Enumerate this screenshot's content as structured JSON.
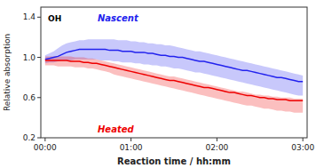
{
  "chart_data": {
    "type": "line",
    "xlabel": "Reaction time / hh:mm",
    "ylabel": "Relative absorption",
    "xlim": [
      -0.05,
      3.05
    ],
    "ylim": [
      0.2,
      1.5
    ],
    "xticks": [
      {
        "value": 0,
        "label": "00:00"
      },
      {
        "value": 1,
        "label": "01:00"
      },
      {
        "value": 2,
        "label": "02:00"
      },
      {
        "value": 3,
        "label": "03:00"
      }
    ],
    "yticks": [
      0.2,
      0.6,
      {
        "value": 1,
        "label": "1.0"
      },
      1.4
    ],
    "annotations": [
      {
        "text": "OH"
      }
    ],
    "x": [
      0.0,
      0.05,
      0.1,
      0.15,
      0.2,
      0.25,
      0.3,
      0.35,
      0.4,
      0.45,
      0.5,
      0.55,
      0.6,
      0.65,
      0.7,
      0.75,
      0.8,
      0.85,
      0.9,
      0.95,
      1.0,
      1.05,
      1.1,
      1.15,
      1.2,
      1.25,
      1.3,
      1.35,
      1.4,
      1.45,
      1.5,
      1.55,
      1.6,
      1.65,
      1.7,
      1.75,
      1.8,
      1.85,
      1.9,
      1.95,
      2.0,
      2.05,
      2.1,
      2.15,
      2.2,
      2.25,
      2.3,
      2.35,
      2.4,
      2.45,
      2.5,
      2.55,
      2.6,
      2.65,
      2.7,
      2.75,
      2.8,
      2.85,
      2.9,
      2.95,
      3.0
    ],
    "series": [
      {
        "name": "Nascent",
        "color": "#2222ee",
        "values": [
          0.98,
          0.99,
          1.0,
          1.01,
          1.03,
          1.05,
          1.06,
          1.07,
          1.08,
          1.08,
          1.08,
          1.08,
          1.08,
          1.08,
          1.08,
          1.07,
          1.07,
          1.07,
          1.06,
          1.06,
          1.06,
          1.05,
          1.05,
          1.05,
          1.04,
          1.04,
          1.03,
          1.02,
          1.02,
          1.01,
          1.01,
          1.0,
          1.0,
          0.99,
          0.98,
          0.97,
          0.96,
          0.96,
          0.95,
          0.94,
          0.93,
          0.92,
          0.91,
          0.9,
          0.89,
          0.88,
          0.87,
          0.87,
          0.86,
          0.85,
          0.84,
          0.83,
          0.82,
          0.81,
          0.8,
          0.8,
          0.79,
          0.78,
          0.77,
          0.76,
          0.76
        ],
        "upper": [
          1.02,
          1.04,
          1.06,
          1.09,
          1.12,
          1.14,
          1.15,
          1.16,
          1.17,
          1.17,
          1.18,
          1.18,
          1.18,
          1.18,
          1.18,
          1.18,
          1.18,
          1.17,
          1.17,
          1.17,
          1.16,
          1.16,
          1.15,
          1.15,
          1.14,
          1.14,
          1.13,
          1.13,
          1.12,
          1.12,
          1.11,
          1.1,
          1.09,
          1.08,
          1.07,
          1.06,
          1.06,
          1.05,
          1.04,
          1.03,
          1.02,
          1.01,
          1.0,
          0.99,
          0.98,
          0.97,
          0.96,
          0.95,
          0.94,
          0.93,
          0.92,
          0.91,
          0.9,
          0.89,
          0.88,
          0.87,
          0.86,
          0.85,
          0.84,
          0.83,
          0.82
        ],
        "lower": [
          0.94,
          0.95,
          0.95,
          0.96,
          0.97,
          0.97,
          0.97,
          0.98,
          0.98,
          0.98,
          0.98,
          0.98,
          0.98,
          0.97,
          0.97,
          0.97,
          0.96,
          0.96,
          0.95,
          0.95,
          0.95,
          0.94,
          0.94,
          0.93,
          0.93,
          0.92,
          0.92,
          0.91,
          0.91,
          0.9,
          0.89,
          0.89,
          0.88,
          0.87,
          0.86,
          0.85,
          0.85,
          0.84,
          0.83,
          0.82,
          0.81,
          0.8,
          0.79,
          0.78,
          0.77,
          0.76,
          0.75,
          0.74,
          0.73,
          0.72,
          0.71,
          0.7,
          0.69,
          0.68,
          0.67,
          0.66,
          0.65,
          0.64,
          0.63,
          0.62,
          0.62
        ]
      },
      {
        "name": "Heated",
        "color": "#ee0000",
        "values": [
          0.97,
          0.97,
          0.97,
          0.97,
          0.97,
          0.97,
          0.96,
          0.96,
          0.96,
          0.95,
          0.95,
          0.94,
          0.94,
          0.93,
          0.92,
          0.91,
          0.9,
          0.89,
          0.88,
          0.87,
          0.86,
          0.85,
          0.84,
          0.83,
          0.82,
          0.81,
          0.8,
          0.79,
          0.78,
          0.77,
          0.77,
          0.76,
          0.75,
          0.74,
          0.73,
          0.72,
          0.71,
          0.7,
          0.7,
          0.69,
          0.68,
          0.67,
          0.66,
          0.65,
          0.65,
          0.64,
          0.63,
          0.62,
          0.62,
          0.61,
          0.6,
          0.6,
          0.59,
          0.59,
          0.58,
          0.58,
          0.58,
          0.57,
          0.57,
          0.57,
          0.57
        ],
        "upper": [
          1.01,
          1.01,
          1.01,
          1.01,
          1.01,
          1.01,
          1.01,
          1.0,
          1.0,
          1.0,
          0.99,
          0.99,
          0.98,
          0.97,
          0.96,
          0.95,
          0.94,
          0.93,
          0.92,
          0.91,
          0.9,
          0.89,
          0.88,
          0.87,
          0.86,
          0.85,
          0.84,
          0.83,
          0.82,
          0.81,
          0.81,
          0.8,
          0.79,
          0.78,
          0.77,
          0.76,
          0.75,
          0.74,
          0.73,
          0.72,
          0.71,
          0.7,
          0.69,
          0.68,
          0.67,
          0.66,
          0.66,
          0.65,
          0.64,
          0.63,
          0.63,
          0.62,
          0.62,
          0.61,
          0.61,
          0.6,
          0.6,
          0.6,
          0.59,
          0.59,
          0.59
        ],
        "lower": [
          0.92,
          0.92,
          0.92,
          0.91,
          0.91,
          0.91,
          0.91,
          0.9,
          0.9,
          0.9,
          0.89,
          0.89,
          0.88,
          0.87,
          0.86,
          0.85,
          0.83,
          0.82,
          0.81,
          0.8,
          0.79,
          0.78,
          0.77,
          0.76,
          0.75,
          0.74,
          0.73,
          0.72,
          0.71,
          0.7,
          0.69,
          0.68,
          0.67,
          0.66,
          0.65,
          0.64,
          0.63,
          0.62,
          0.61,
          0.6,
          0.59,
          0.58,
          0.57,
          0.56,
          0.55,
          0.54,
          0.53,
          0.52,
          0.52,
          0.51,
          0.5,
          0.49,
          0.49,
          0.48,
          0.47,
          0.47,
          0.46,
          0.46,
          0.45,
          0.45,
          0.45
        ]
      }
    ]
  }
}
